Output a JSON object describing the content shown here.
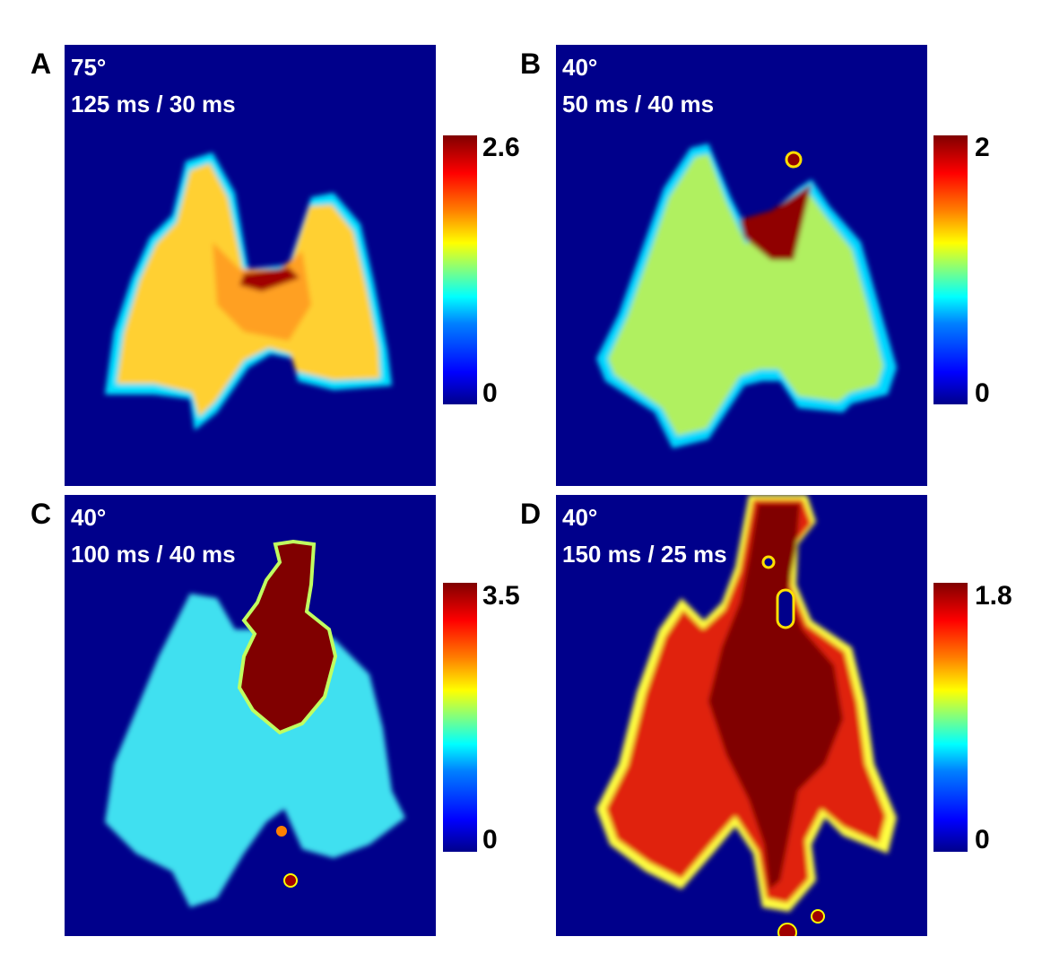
{
  "panels": [
    {
      "letter": "A",
      "angle": "75°",
      "timing": "125 ms / 30 ms",
      "cbar_max": "2.6",
      "cbar_min": "0",
      "dominant_color": "#ffc830"
    },
    {
      "letter": "B",
      "angle": "40°",
      "timing": "50 ms / 40 ms",
      "cbar_max": "2",
      "cbar_min": "0",
      "dominant_color": "#a8f060"
    },
    {
      "letter": "C",
      "angle": "40°",
      "timing": "100 ms / 40 ms",
      "cbar_max": "3.5",
      "cbar_min": "0",
      "dominant_color": "#50e8f0"
    },
    {
      "letter": "D",
      "angle": "40°",
      "timing": "150 ms / 25 ms",
      "cbar_max": "1.8",
      "cbar_min": "0",
      "dominant_color": "#e02010"
    }
  ],
  "colormap": "jet",
  "background_color": "#00008b",
  "hotspot_color": "#800000"
}
